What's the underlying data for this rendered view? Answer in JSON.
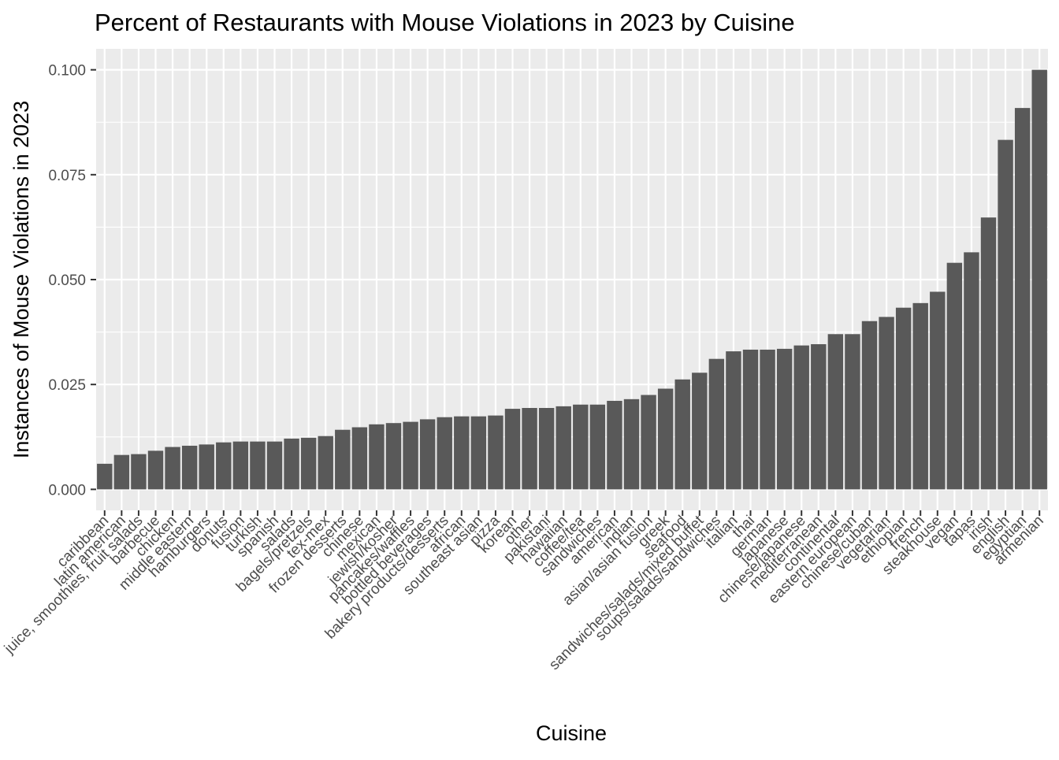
{
  "chart_data": {
    "type": "bar",
    "title": "Percent of Restaurants with Mouse Violations in 2023 by Cuisine",
    "xlabel": "Cuisine",
    "ylabel": "Instances of Mouse Violations in 2023",
    "ylim": [
      -0.005,
      0.105
    ],
    "yticks": [
      0.0,
      0.025,
      0.05,
      0.075,
      0.1
    ],
    "ytick_labels": [
      "0.000",
      "0.025",
      "0.050",
      "0.075",
      "0.100"
    ],
    "grid": true,
    "background": "#ebebeb",
    "bar_color": "#595959",
    "categories": [
      "caribbean",
      "latin american",
      "juice, smoothies, fruit salads",
      "barbecue",
      "chicken",
      "middle eastern",
      "hamburgers",
      "donuts",
      "fusion",
      "turkish",
      "spanish",
      "salads",
      "bagels/pretzels",
      "tex-mex",
      "frozen desserts",
      "chinese",
      "mexican",
      "jewish/kosher",
      "pancakes/waffles",
      "bottled beverages",
      "bakery products/desserts",
      "african",
      "southeast asian",
      "pizza",
      "korean",
      "other",
      "pakistani",
      "hawaiian",
      "coffee/tea",
      "sandwiches",
      "american",
      "indian",
      "asian/asian fusion",
      "greek",
      "seafood",
      "sandwiches/salads/mixed buffet",
      "soups/salads/sandwiches",
      "italian",
      "thai",
      "german",
      "japanese",
      "chinese/japanese",
      "mediterranean",
      "continental",
      "eastern european",
      "chinese/cuban",
      "vegetarian",
      "ethiopian",
      "french",
      "steakhouse",
      "vegan",
      "tapas",
      "irish",
      "english",
      "egyptian",
      "armenian"
    ],
    "values": [
      0.0061,
      0.0082,
      0.0084,
      0.0092,
      0.0101,
      0.0104,
      0.0107,
      0.0112,
      0.0114,
      0.0114,
      0.0114,
      0.0121,
      0.0123,
      0.0127,
      0.0142,
      0.0148,
      0.0155,
      0.0158,
      0.0161,
      0.0167,
      0.0172,
      0.0174,
      0.0174,
      0.0176,
      0.0192,
      0.0194,
      0.0194,
      0.0198,
      0.0202,
      0.0202,
      0.0211,
      0.0215,
      0.0225,
      0.024,
      0.0262,
      0.0278,
      0.0311,
      0.0329,
      0.0333,
      0.0333,
      0.0335,
      0.0343,
      0.0346,
      0.037,
      0.037,
      0.0401,
      0.0411,
      0.0433,
      0.0444,
      0.0471,
      0.054,
      0.0565,
      0.0648,
      0.0833,
      0.0909,
      0.1
    ]
  }
}
